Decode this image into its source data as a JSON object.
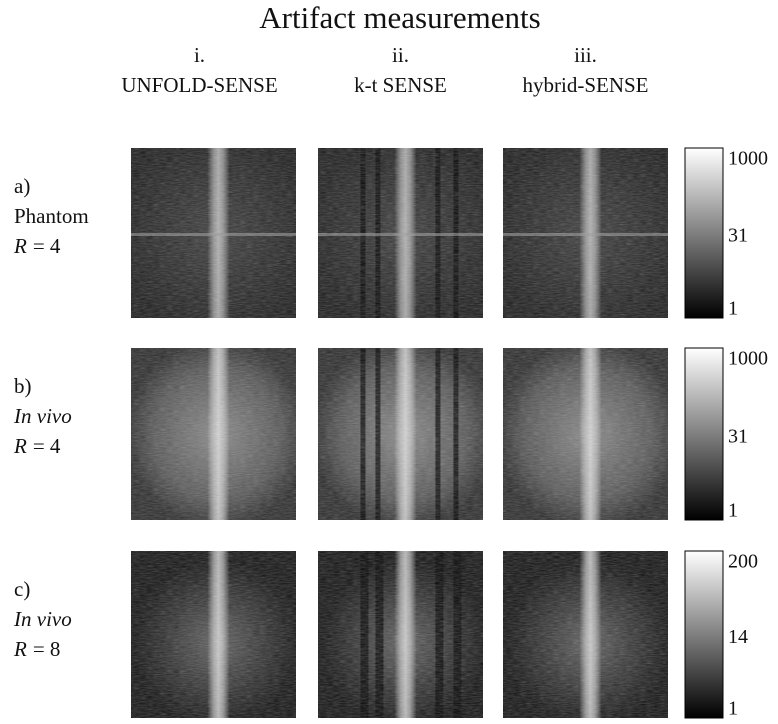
{
  "title": "Artifact measurements",
  "columns": [
    {
      "numeral": "i.",
      "name": "UNFOLD-SENSE"
    },
    {
      "numeral": "ii.",
      "name": "k-t SENSE"
    },
    {
      "numeral": "iii.",
      "name": "hybrid-SENSE"
    }
  ],
  "rows": [
    {
      "letter": "a)",
      "subject": "Phantom",
      "subject_italic": false,
      "r_symbol": "R",
      "r_value": "= 4",
      "colorbar_ticks": [
        1000,
        31,
        1
      ]
    },
    {
      "letter": "b)",
      "subject": "In vivo",
      "subject_italic": true,
      "r_symbol": "R",
      "r_value": "= 4",
      "colorbar_ticks": [
        1000,
        31,
        1
      ]
    },
    {
      "letter": "c)",
      "subject": "In vivo",
      "subject_italic": true,
      "r_symbol": "R",
      "r_value": "= 8",
      "colorbar_ticks": [
        200,
        14,
        1
      ]
    }
  ]
}
